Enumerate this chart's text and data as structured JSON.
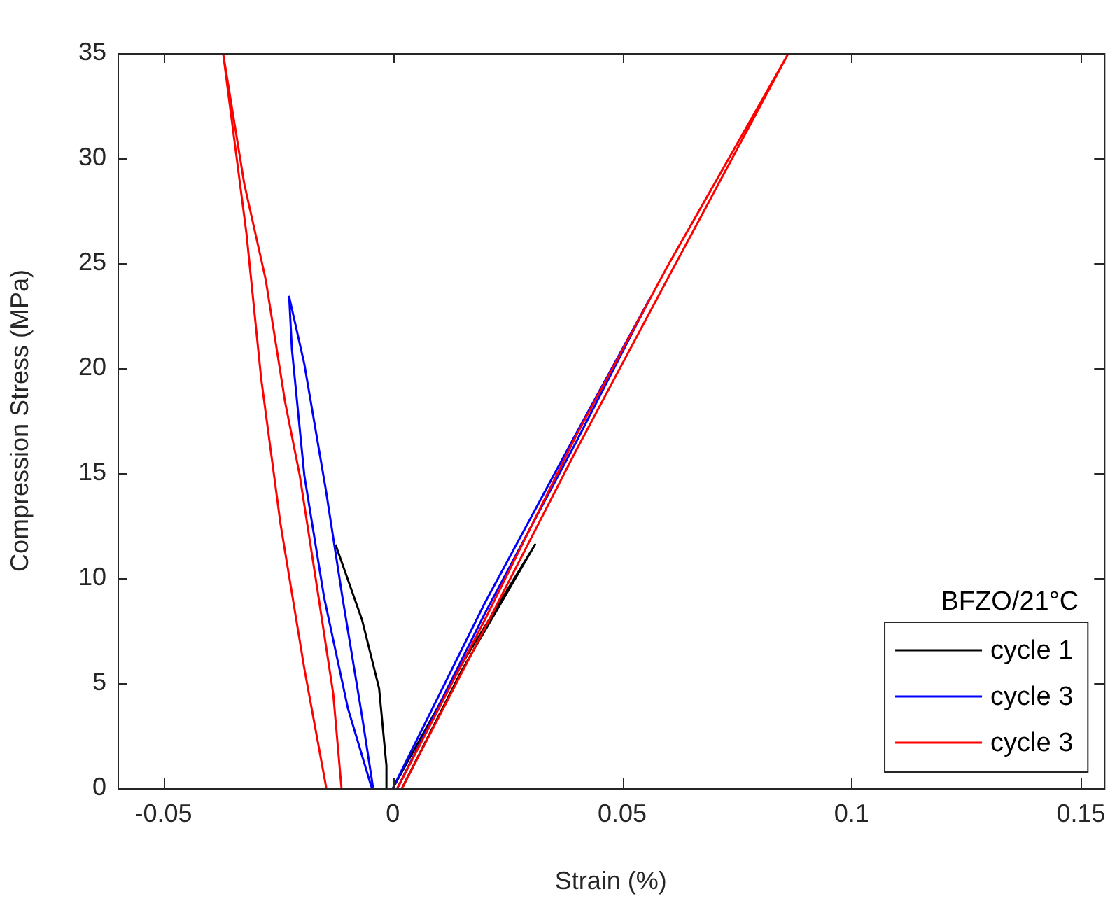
{
  "chart_data": {
    "type": "line",
    "xlabel": "Strain (%)",
    "ylabel": "Compression Stress (MPa)",
    "legend_title": "BFZO/21°C",
    "legend": "bottom right",
    "grid": false,
    "xlim": [
      -0.06,
      0.155
    ],
    "xticks": [
      -0.05,
      0,
      0.05,
      0.1,
      0.15
    ],
    "ylim": [
      0,
      35
    ],
    "yticks": [
      0,
      5,
      10,
      15,
      20,
      25,
      30,
      35
    ],
    "series": [
      {
        "name": "cycle 1",
        "color": "#000000",
        "x": [
          -0.0013,
          -0.0014,
          -0.003,
          -0.0067,
          -0.0125
        ],
        "values": [
          0,
          1.07,
          4.75,
          8.0,
          11.6
        ]
      },
      {
        "name": "cycle 3",
        "color": "#0000ff",
        "x": [
          -0.0046,
          -0.0098,
          -0.015,
          -0.0193,
          -0.022,
          -0.0226,
          -0.0193,
          -0.0146,
          -0.011,
          -0.0067,
          -0.0043
        ],
        "values": [
          0,
          3.8,
          9.1,
          14.9,
          20.9,
          23.4,
          20.2,
          14.2,
          9.1,
          3.4,
          0
        ]
      },
      {
        "name": "cycle 3",
        "color": "#ff0000",
        "x": [
          -0.0145,
          -0.0193,
          -0.0245,
          -0.0287,
          -0.0319,
          -0.037,
          -0.0324,
          -0.0277,
          -0.0235,
          -0.0203,
          -0.0162,
          -0.013,
          -0.0112
        ],
        "values": [
          0,
          5.7,
          12.6,
          19.5,
          26.4,
          35.0,
          28.8,
          24.2,
          18.4,
          14.9,
          9.1,
          4.5,
          0
        ]
      },
      {
        "color": "#000000",
        "x": [
          0,
          0.015,
          0.031,
          0.015,
          0.002
        ],
        "values": [
          0,
          5.9,
          11.6,
          5.6,
          0
        ]
      },
      {
        "color": "#0000ff",
        "x": [
          0,
          0.02,
          0.04,
          0.056,
          0.04,
          0.02,
          0.001
        ],
        "values": [
          0,
          8.8,
          16.9,
          23.3,
          16.5,
          8.3,
          0
        ]
      },
      {
        "color": "#ff0000",
        "x": [
          0.001,
          0.02,
          0.04,
          0.06,
          0.086,
          0.06,
          0.04,
          0.02,
          0.002
        ],
        "values": [
          0,
          8.0,
          16.8,
          24.9,
          34.9,
          24.3,
          16.1,
          7.6,
          0
        ]
      }
    ]
  }
}
